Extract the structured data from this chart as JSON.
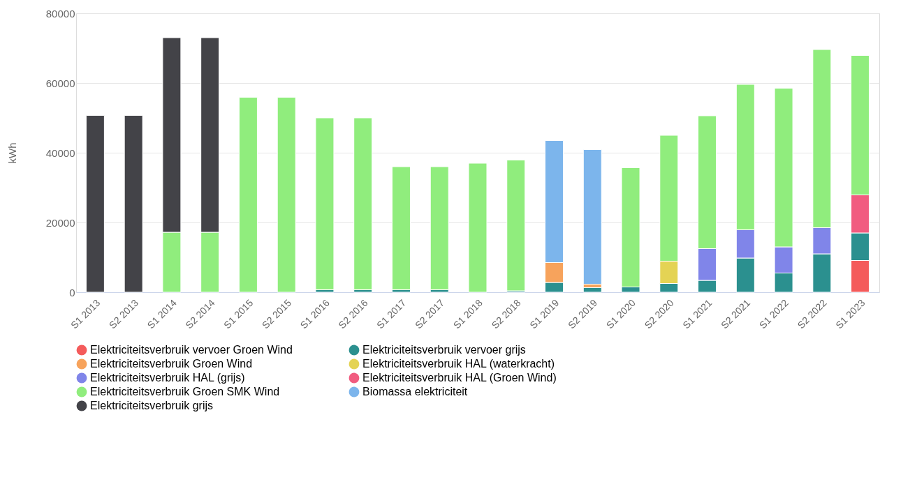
{
  "chart_data": {
    "type": "bar",
    "stacked": true,
    "ylabel": "kWh",
    "ylim": [
      0,
      80000
    ],
    "yticks": [
      0,
      20000,
      40000,
      60000,
      80000
    ],
    "grid": "y",
    "legend": "bottom",
    "categories": [
      "S1 2013",
      "S2 2013",
      "S1 2014",
      "S2 2014",
      "S1 2015",
      "S2 2015",
      "S1 2016",
      "S2 2016",
      "S1 2017",
      "S2 2017",
      "S1 2018",
      "S2 2018",
      "S1 2019",
      "S2 2019",
      "S1 2020",
      "S2 2020",
      "S1 2021",
      "S2 2021",
      "S1 2022",
      "S2 2022",
      "S1 2023"
    ],
    "series": [
      {
        "name": "Elektriciteitsverbruik vervoer Groen Wind",
        "color": "#f45b5b",
        "values": [
          null,
          null,
          null,
          null,
          null,
          null,
          null,
          null,
          null,
          null,
          null,
          null,
          null,
          null,
          null,
          null,
          null,
          null,
          null,
          null,
          9100
        ]
      },
      {
        "name": "Elektriciteitsverbruik vervoer grijs",
        "color": "#2b908f",
        "values": [
          null,
          null,
          null,
          null,
          null,
          null,
          700,
          700,
          700,
          700,
          null,
          400,
          2800,
          1300,
          1500,
          2500,
          3400,
          9800,
          5500,
          11000,
          7900
        ]
      },
      {
        "name": "Elektriciteitsverbruik Groen Wind",
        "color": "#f7a35c",
        "values": [
          null,
          null,
          null,
          null,
          null,
          null,
          null,
          null,
          null,
          null,
          null,
          null,
          5700,
          1000,
          null,
          null,
          null,
          null,
          null,
          null,
          null
        ]
      },
      {
        "name": "Elektriciteitsverbruik HAL (waterkracht)",
        "color": "#e4d354",
        "values": [
          null,
          null,
          null,
          null,
          null,
          null,
          null,
          null,
          null,
          null,
          null,
          null,
          null,
          null,
          null,
          6400,
          null,
          null,
          null,
          null,
          null
        ]
      },
      {
        "name": "Elektriciteitsverbruik HAL (grijs)",
        "color": "#8085e9",
        "values": [
          null,
          null,
          null,
          null,
          null,
          null,
          null,
          null,
          null,
          null,
          null,
          null,
          null,
          null,
          null,
          null,
          9100,
          8100,
          7500,
          7500,
          null
        ]
      },
      {
        "name": "Elektriciteitsverbruik HAL (Groen Wind)",
        "color": "#f15c80",
        "values": [
          null,
          null,
          null,
          null,
          null,
          null,
          null,
          null,
          null,
          null,
          null,
          null,
          null,
          null,
          null,
          null,
          null,
          null,
          null,
          null,
          10900
        ]
      },
      {
        "name": "Elektriciteitsverbruik Groen SMK Wind",
        "color": "#90ed7d",
        "values": [
          null,
          null,
          17200,
          17200,
          55900,
          55900,
          49300,
          49300,
          35300,
          35300,
          37000,
          37500,
          null,
          null,
          34200,
          36100,
          38100,
          41700,
          45500,
          51100,
          40000
        ]
      },
      {
        "name": "Biomassa elektriciteit",
        "color": "#7cb5ec",
        "values": [
          null,
          null,
          null,
          null,
          null,
          null,
          null,
          null,
          null,
          null,
          null,
          null,
          35000,
          38600,
          null,
          null,
          null,
          null,
          null,
          null,
          null
        ]
      },
      {
        "name": "Elektriciteitsverbruik grijs",
        "color": "#434348",
        "values": [
          50700,
          50700,
          55800,
          55800,
          null,
          null,
          null,
          null,
          null,
          null,
          null,
          null,
          null,
          null,
          null,
          null,
          null,
          null,
          null,
          null,
          null
        ]
      }
    ]
  }
}
